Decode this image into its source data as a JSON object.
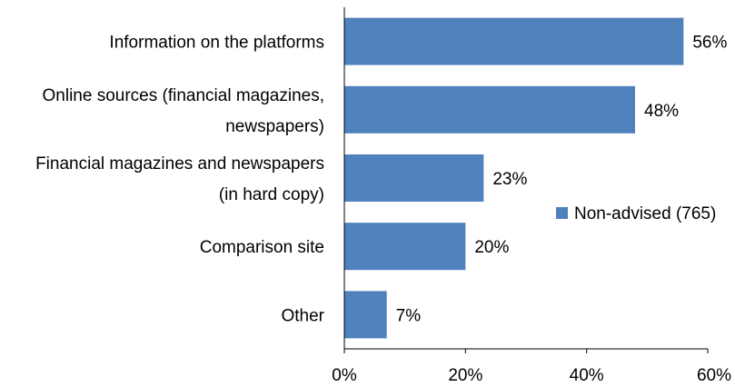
{
  "chart_data": {
    "type": "bar",
    "orientation": "horizontal",
    "categories": [
      [
        "Information on the platforms"
      ],
      [
        "Online sources (financial magazines,",
        "newspapers)"
      ],
      [
        "Financial magazines and newspapers",
        "(in hard copy)"
      ],
      [
        "Comparison site"
      ],
      [
        "Other"
      ]
    ],
    "series": [
      {
        "name": "Non-advised (765)",
        "values": [
          56,
          48,
          23,
          20,
          7
        ],
        "data_labels": [
          "56%",
          "48%",
          "23%",
          "20%",
          "7%"
        ],
        "color": "#4f81bd"
      }
    ],
    "xlim": [
      0,
      60
    ],
    "xticks": [
      0,
      20,
      40,
      60
    ],
    "xtick_labels": [
      "0%",
      "20%",
      "40%",
      "60%"
    ],
    "grid": false,
    "legend_position": "right"
  }
}
